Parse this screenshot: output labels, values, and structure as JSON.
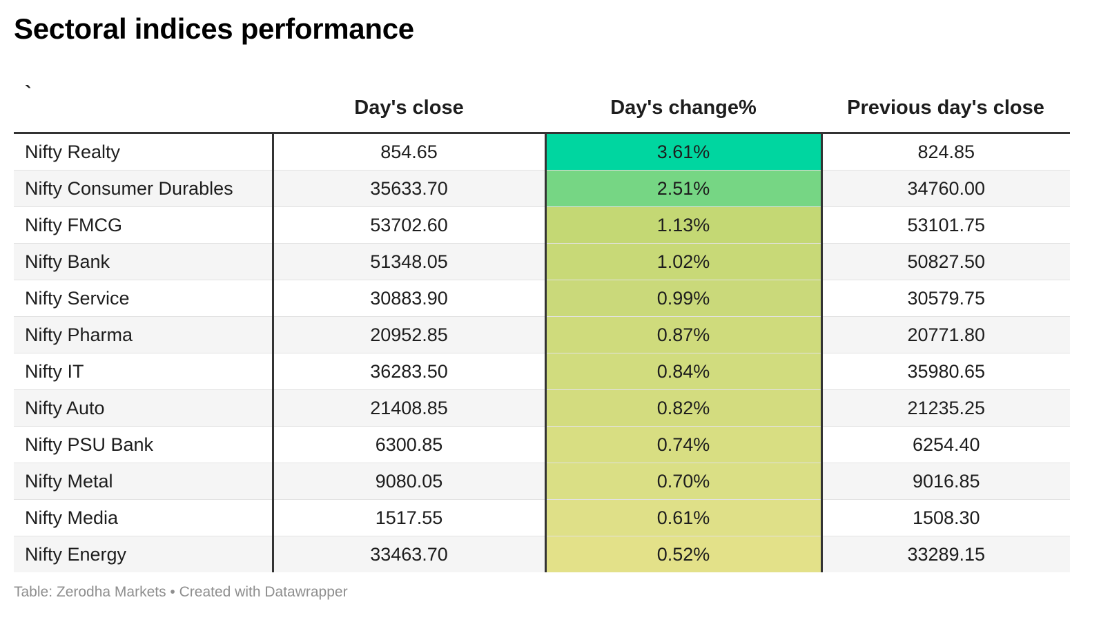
{
  "title": "Sectoral indices performance",
  "table": {
    "headers": [
      "`",
      "Day's close",
      "Day's change%",
      "Previous day's close"
    ]
  },
  "chart_data": {
    "type": "table",
    "title": "Sectoral indices performance",
    "columns": [
      "`",
      "Day's close",
      "Day's change%",
      "Previous day's close"
    ],
    "heatmap_column": "Day's change%",
    "heatmap_colors": {
      "3.61%": "#00d6a0",
      "2.51%": "#76d684",
      "1.13%": "#c4d874",
      "1.02%": "#c8d977",
      "0.99%": "#cad97a",
      "0.87%": "#cfdb7c",
      "0.84%": "#d1dc7e",
      "0.82%": "#d3dc7f",
      "0.74%": "#d8de82",
      "0.70%": "#dadf85",
      "0.61%": "#dfe088",
      "0.52%": "#e3e189"
    },
    "rows": [
      {
        "name": "Nifty Realty",
        "close": "854.65",
        "change": "3.61%",
        "prev_close": "824.85",
        "color": "#00d6a0"
      },
      {
        "name": "Nifty Consumer Durables",
        "close": "35633.70",
        "change": "2.51%",
        "prev_close": "34760.00",
        "color": "#76d684"
      },
      {
        "name": "Nifty FMCG",
        "close": "53702.60",
        "change": "1.13%",
        "prev_close": "53101.75",
        "color": "#c4d874"
      },
      {
        "name": "Nifty Bank",
        "close": "51348.05",
        "change": "1.02%",
        "prev_close": "50827.50",
        "color": "#c8d977"
      },
      {
        "name": "Nifty Service",
        "close": "30883.90",
        "change": "0.99%",
        "prev_close": "30579.75",
        "color": "#cad97a"
      },
      {
        "name": "Nifty Pharma",
        "close": "20952.85",
        "change": "0.87%",
        "prev_close": "20771.80",
        "color": "#cfdb7c"
      },
      {
        "name": "Nifty IT",
        "close": "36283.50",
        "change": "0.84%",
        "prev_close": "35980.65",
        "color": "#d1dc7e"
      },
      {
        "name": "Nifty Auto",
        "close": "21408.85",
        "change": "0.82%",
        "prev_close": "21235.25",
        "color": "#d3dc7f"
      },
      {
        "name": "Nifty PSU Bank",
        "close": "6300.85",
        "change": "0.74%",
        "prev_close": "6254.40",
        "color": "#d8de82"
      },
      {
        "name": "Nifty Metal",
        "close": "9080.05",
        "change": "0.70%",
        "prev_close": "9016.85",
        "color": "#dadf85"
      },
      {
        "name": "Nifty Media",
        "close": "1517.55",
        "change": "0.61%",
        "prev_close": "1508.30",
        "color": "#dfe088"
      },
      {
        "name": "Nifty Energy",
        "close": "33463.70",
        "change": "0.52%",
        "prev_close": "33289.15",
        "color": "#e3e189"
      }
    ]
  },
  "footer": "Table: Zerodha Markets • Created with Datawrapper"
}
